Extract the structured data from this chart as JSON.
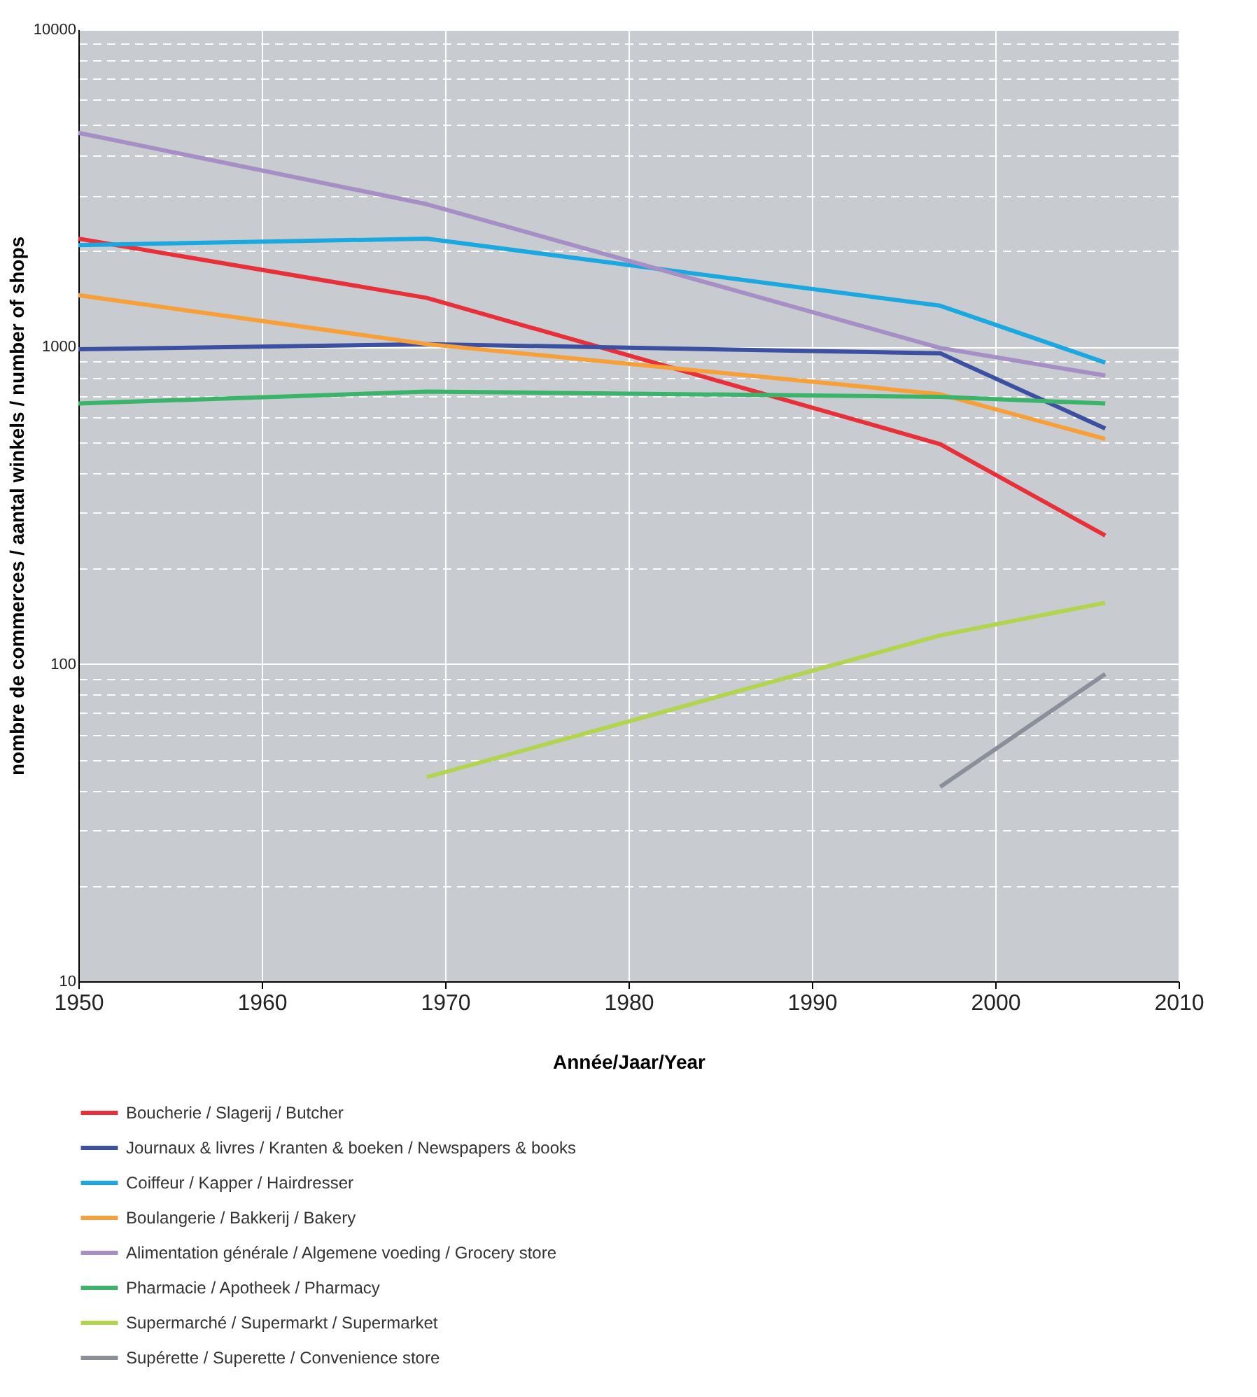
{
  "chart_data": {
    "type": "line",
    "xlabel": "Année/Jaar/Year",
    "ylabel": "nombre de commerces / aantal winkels / number of shops",
    "x": [
      1950,
      1969,
      1997,
      2006
    ],
    "series": [
      {
        "name": "Boucherie / Slagerij / Butcher",
        "color": "#e8303a",
        "values": [
          2190,
          1425,
          493,
          254
        ]
      },
      {
        "name": "Journaux & livres / Kranten & boeken / Newspapers & books",
        "color": "#3d4fa0",
        "values": [
          981,
          1019,
          953,
          552
        ]
      },
      {
        "name": "Coiffeur / Kapper / Hairdresser",
        "color": "#1ba8e0",
        "values": [
          2090,
          2190,
          1346,
          891
        ]
      },
      {
        "name": "Boulangerie / Bakkerij / Bakery",
        "color": "#f7a03a",
        "values": [
          1453,
          1019,
          708,
          512
        ]
      },
      {
        "name": "Alimentation générale / Algemene voeding / Grocery store",
        "color": "#a68fc4",
        "values": [
          4720,
          2812,
          991,
          811
        ]
      },
      {
        "name": "Pharmacie / Apotheek / Pharmacy",
        "color": "#3bb36a",
        "values": [
          662,
          722,
          695,
          662
        ]
      },
      {
        "name": "Supermarché / Supermarkt / Supermarket",
        "color": "#b2d450",
        "x": [
          1969,
          1997,
          2006
        ],
        "values": [
          44,
          123,
          156
        ]
      },
      {
        "name": "Supérette / Superette / Convenience store",
        "color": "#8a8f99",
        "x": [
          1997,
          2006
        ],
        "values": [
          41,
          93
        ]
      }
    ],
    "log": "y",
    "xlim": [
      1950,
      2010
    ],
    "xticks": [
      1950,
      1960,
      1970,
      1980,
      1990,
      2000,
      2010
    ],
    "ylim": [
      10,
      10000
    ],
    "yticks": [
      10,
      {
        "value": 20,
        "label": null
      },
      {
        "value": 30,
        "label": null
      },
      {
        "value": 40,
        "label": null
      },
      {
        "value": 50,
        "label": null
      },
      {
        "value": 60,
        "label": null
      },
      {
        "value": 70,
        "label": null
      },
      {
        "value": 80,
        "label": null
      },
      {
        "value": 90,
        "label": null
      },
      100,
      {
        "value": 200,
        "label": null
      },
      {
        "value": 300,
        "label": null
      },
      {
        "value": 400,
        "label": null
      },
      {
        "value": 500,
        "label": null
      },
      {
        "value": 600,
        "label": null
      },
      {
        "value": 700,
        "label": null
      },
      {
        "value": 800,
        "label": null
      },
      {
        "value": 900,
        "label": null
      },
      1000,
      {
        "value": 2000,
        "label": null
      },
      {
        "value": 3000,
        "label": null
      },
      {
        "value": 4000,
        "label": null
      },
      {
        "value": 5000,
        "label": null
      },
      {
        "value": 6000,
        "label": null
      },
      {
        "value": 7000,
        "label": null
      },
      {
        "value": 8000,
        "label": null
      },
      {
        "value": 9000,
        "label": null
      },
      10000
    ],
    "grid": true,
    "legend": "bottom",
    "marker": "none",
    "line_style": "solid"
  }
}
